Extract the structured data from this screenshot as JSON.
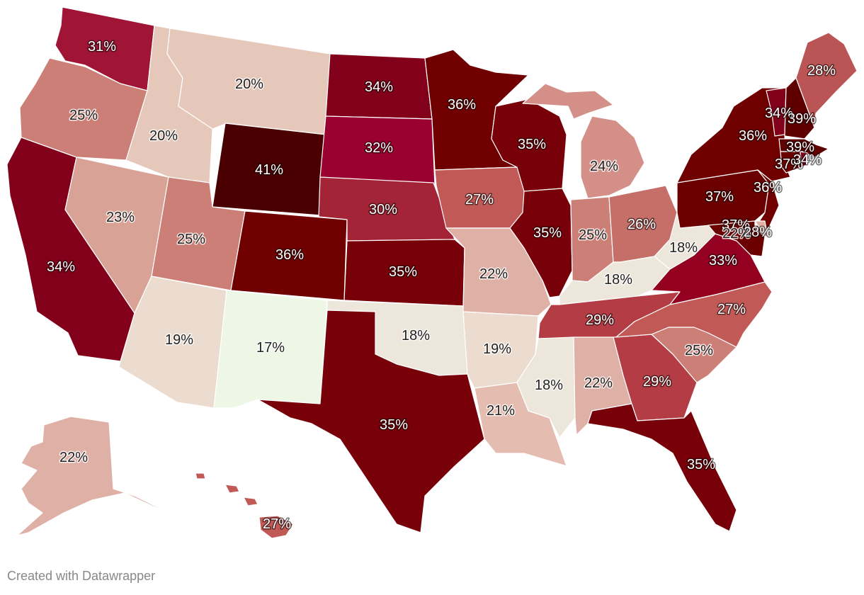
{
  "credit": "Created with Datawrapper",
  "colors": {
    "s17": "#eef6e6",
    "s18": "#ede6da",
    "s19": "#ecdcd0",
    "s20": "#e6c8ba",
    "s21": "#e4bcb0",
    "s22": "#dfb0a6",
    "s23": "#d9a297",
    "s24": "#d49088",
    "s25": "#cc7f76",
    "s26": "#c66e68",
    "s27": "#c15a56",
    "s28": "#bb5454",
    "s29": "#b43c44",
    "s30": "#a32436",
    "s31": "#a01535",
    "s32": "#9a0030",
    "s33": "#94001f",
    "s34": "#82001a",
    "s35": "#780008",
    "s36": "#700000",
    "s37": "#6a0000",
    "s39": "#5e0000",
    "s41": "#4a0000"
  },
  "chart_data": {
    "type": "choropleth",
    "region": "United States",
    "unit": "%",
    "values": [
      {
        "state": "Washington",
        "value": 31,
        "label": "31%"
      },
      {
        "state": "Oregon",
        "value": 25,
        "label": "25%"
      },
      {
        "state": "California",
        "value": 34,
        "label": "34%"
      },
      {
        "state": "Nevada",
        "value": 23,
        "label": "23%"
      },
      {
        "state": "Idaho",
        "value": 20,
        "label": "20%"
      },
      {
        "state": "Montana",
        "value": 20,
        "label": "20%"
      },
      {
        "state": "Wyoming",
        "value": 41,
        "label": "41%"
      },
      {
        "state": "Utah",
        "value": 25,
        "label": "25%"
      },
      {
        "state": "Arizona",
        "value": 19,
        "label": "19%"
      },
      {
        "state": "Colorado",
        "value": 36,
        "label": "36%"
      },
      {
        "state": "New Mexico",
        "value": 17,
        "label": "17%"
      },
      {
        "state": "North Dakota",
        "value": 34,
        "label": "34%"
      },
      {
        "state": "South Dakota",
        "value": 32,
        "label": "32%"
      },
      {
        "state": "Nebraska",
        "value": 30,
        "label": "30%"
      },
      {
        "state": "Kansas",
        "value": 35,
        "label": "35%"
      },
      {
        "state": "Oklahoma",
        "value": 18,
        "label": "18%"
      },
      {
        "state": "Texas",
        "value": 35,
        "label": "35%"
      },
      {
        "state": "Minnesota",
        "value": 36,
        "label": "36%"
      },
      {
        "state": "Iowa",
        "value": 27,
        "label": "27%"
      },
      {
        "state": "Missouri",
        "value": 22,
        "label": "22%"
      },
      {
        "state": "Arkansas",
        "value": 19,
        "label": "19%"
      },
      {
        "state": "Louisiana",
        "value": 21,
        "label": "21%"
      },
      {
        "state": "Wisconsin",
        "value": 35,
        "label": "35%"
      },
      {
        "state": "Illinois",
        "value": 35,
        "label": "35%"
      },
      {
        "state": "Michigan",
        "value": 24,
        "label": "24%"
      },
      {
        "state": "Indiana",
        "value": 25,
        "label": "25%"
      },
      {
        "state": "Ohio",
        "value": 26,
        "label": "26%"
      },
      {
        "state": "Kentucky",
        "value": 18,
        "label": "18%"
      },
      {
        "state": "Tennessee",
        "value": 29,
        "label": "29%"
      },
      {
        "state": "Mississippi",
        "value": 18,
        "label": "18%"
      },
      {
        "state": "Alabama",
        "value": 22,
        "label": "22%"
      },
      {
        "state": "Georgia",
        "value": 29,
        "label": "29%"
      },
      {
        "state": "Florida",
        "value": 35,
        "label": "35%"
      },
      {
        "state": "South Carolina",
        "value": 25,
        "label": "25%"
      },
      {
        "state": "North Carolina",
        "value": 27,
        "label": "27%"
      },
      {
        "state": "Virginia",
        "value": 33,
        "label": "33%"
      },
      {
        "state": "West Virginia",
        "value": 18,
        "label": "18%"
      },
      {
        "state": "Pennsylvania",
        "value": 37,
        "label": "37%"
      },
      {
        "state": "New York",
        "value": 36,
        "label": "36%"
      },
      {
        "state": "New Jersey",
        "value": 36,
        "label": "36%"
      },
      {
        "state": "Maryland",
        "value": 37,
        "label": "37%"
      },
      {
        "state": "Delaware",
        "value": 22,
        "label": "22%"
      },
      {
        "state": "District of Columbia",
        "value": 28,
        "label": "28%"
      },
      {
        "state": "Vermont",
        "value": 34,
        "label": "34%"
      },
      {
        "state": "New Hampshire",
        "value": 39,
        "label": "39%"
      },
      {
        "state": "Maine",
        "value": 28,
        "label": "28%"
      },
      {
        "state": "Massachusetts",
        "value": 39,
        "label": "39%"
      },
      {
        "state": "Connecticut",
        "value": 37,
        "label": "37%"
      },
      {
        "state": "Rhode Island",
        "value": 34,
        "label": "34%"
      },
      {
        "state": "Alaska",
        "value": 22,
        "label": "22%"
      },
      {
        "state": "Hawaii",
        "value": 27,
        "label": "27%"
      }
    ]
  }
}
